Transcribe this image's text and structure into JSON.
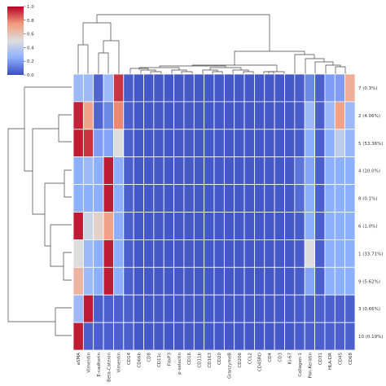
{
  "chart_data": {
    "type": "heatmap",
    "title": "",
    "colormap": "coolwarm",
    "value_range": [
      0,
      1
    ],
    "colorbar": {
      "ticks": [
        "0.0",
        "0.2",
        "0.4",
        "0.6",
        "0.8",
        "1.0"
      ],
      "tick_values": [
        0,
        0.2,
        0.4,
        0.6,
        0.8,
        1.0
      ],
      "placement": "top-left"
    },
    "columns": [
      "aSMA",
      "Vimentin",
      "E-cadherin",
      "Beta-Catenin",
      "Vimentin",
      "CD14",
      "CD66b",
      "CD8",
      "CD11c",
      "FoxP3",
      "p-selectin",
      "CD16",
      "CD11b",
      "CD163",
      "CD20",
      "GranzymeB",
      "CD206",
      "CCL2",
      "CD45RO",
      "CD4",
      "CD3",
      "Ki-67",
      "Collagen-1",
      "Pan-Keratin",
      "CD31",
      "HLA-DR",
      "CD45",
      "CD68"
    ],
    "rows": [
      "7 (0.3%)",
      "2 (4.06%)",
      "5 (53.36%)",
      "4 (10.0%)",
      "8 (0.1%)",
      "6 (1.0%)",
      "1 (33.71%)",
      "9 (5.62%)",
      "3 (0.66%)",
      "10 (0.19%)"
    ],
    "values": [
      [
        0.3,
        0.3,
        0.06,
        0.3,
        0.92,
        0.04,
        0.03,
        0.03,
        0.03,
        0.03,
        0.03,
        0.03,
        0.03,
        0.03,
        0.03,
        0.03,
        0.03,
        0.03,
        0.03,
        0.03,
        0.03,
        0.03,
        0.04,
        0.15,
        0.05,
        0.2,
        0.2,
        0.68
      ],
      [
        0.95,
        0.72,
        0.06,
        0.15,
        0.78,
        0.05,
        0.03,
        0.03,
        0.03,
        0.03,
        0.03,
        0.03,
        0.03,
        0.03,
        0.03,
        0.03,
        0.03,
        0.03,
        0.03,
        0.03,
        0.03,
        0.03,
        0.04,
        0.3,
        0.05,
        0.3,
        0.72,
        0.3
      ],
      [
        0.96,
        0.92,
        0.2,
        0.22,
        0.5,
        0.05,
        0.03,
        0.03,
        0.03,
        0.03,
        0.03,
        0.03,
        0.03,
        0.03,
        0.03,
        0.03,
        0.03,
        0.03,
        0.03,
        0.03,
        0.03,
        0.03,
        0.04,
        0.25,
        0.05,
        0.25,
        0.4,
        0.28
      ],
      [
        0.25,
        0.3,
        0.25,
        0.96,
        0.25,
        0.05,
        0.03,
        0.03,
        0.03,
        0.03,
        0.03,
        0.03,
        0.03,
        0.03,
        0.03,
        0.03,
        0.03,
        0.03,
        0.03,
        0.03,
        0.03,
        0.03,
        0.1,
        0.22,
        0.05,
        0.25,
        0.25,
        0.25
      ],
      [
        0.25,
        0.25,
        0.25,
        0.96,
        0.25,
        0.05,
        0.03,
        0.03,
        0.03,
        0.03,
        0.03,
        0.03,
        0.03,
        0.03,
        0.03,
        0.03,
        0.03,
        0.03,
        0.03,
        0.03,
        0.03,
        0.03,
        0.08,
        0.25,
        0.05,
        0.25,
        0.25,
        0.25
      ],
      [
        0.96,
        0.45,
        0.55,
        0.72,
        0.25,
        0.05,
        0.03,
        0.03,
        0.03,
        0.03,
        0.03,
        0.03,
        0.03,
        0.03,
        0.03,
        0.03,
        0.03,
        0.03,
        0.03,
        0.03,
        0.03,
        0.03,
        0.04,
        0.25,
        0.05,
        0.25,
        0.25,
        0.25
      ],
      [
        0.5,
        0.3,
        0.25,
        0.96,
        0.25,
        0.05,
        0.03,
        0.03,
        0.03,
        0.03,
        0.03,
        0.03,
        0.03,
        0.03,
        0.03,
        0.03,
        0.03,
        0.03,
        0.03,
        0.03,
        0.03,
        0.03,
        0.04,
        0.5,
        0.05,
        0.25,
        0.25,
        0.25
      ],
      [
        0.65,
        0.3,
        0.25,
        0.96,
        0.25,
        0.05,
        0.03,
        0.03,
        0.03,
        0.03,
        0.03,
        0.03,
        0.03,
        0.03,
        0.03,
        0.03,
        0.03,
        0.03,
        0.03,
        0.03,
        0.03,
        0.03,
        0.04,
        0.22,
        0.05,
        0.25,
        0.25,
        0.25
      ],
      [
        0.3,
        0.96,
        0.05,
        0.05,
        0.05,
        0.05,
        0.03,
        0.03,
        0.03,
        0.03,
        0.03,
        0.03,
        0.03,
        0.03,
        0.03,
        0.03,
        0.03,
        0.03,
        0.03,
        0.03,
        0.03,
        0.03,
        0.04,
        0.05,
        0.05,
        0.05,
        0.05,
        0.05
      ],
      [
        0.96,
        0.05,
        0.05,
        0.05,
        0.05,
        0.05,
        0.03,
        0.03,
        0.03,
        0.03,
        0.03,
        0.03,
        0.03,
        0.03,
        0.03,
        0.03,
        0.03,
        0.03,
        0.03,
        0.03,
        0.03,
        0.03,
        0.04,
        0.05,
        0.05,
        0.05,
        0.05,
        0.05
      ]
    ]
  }
}
